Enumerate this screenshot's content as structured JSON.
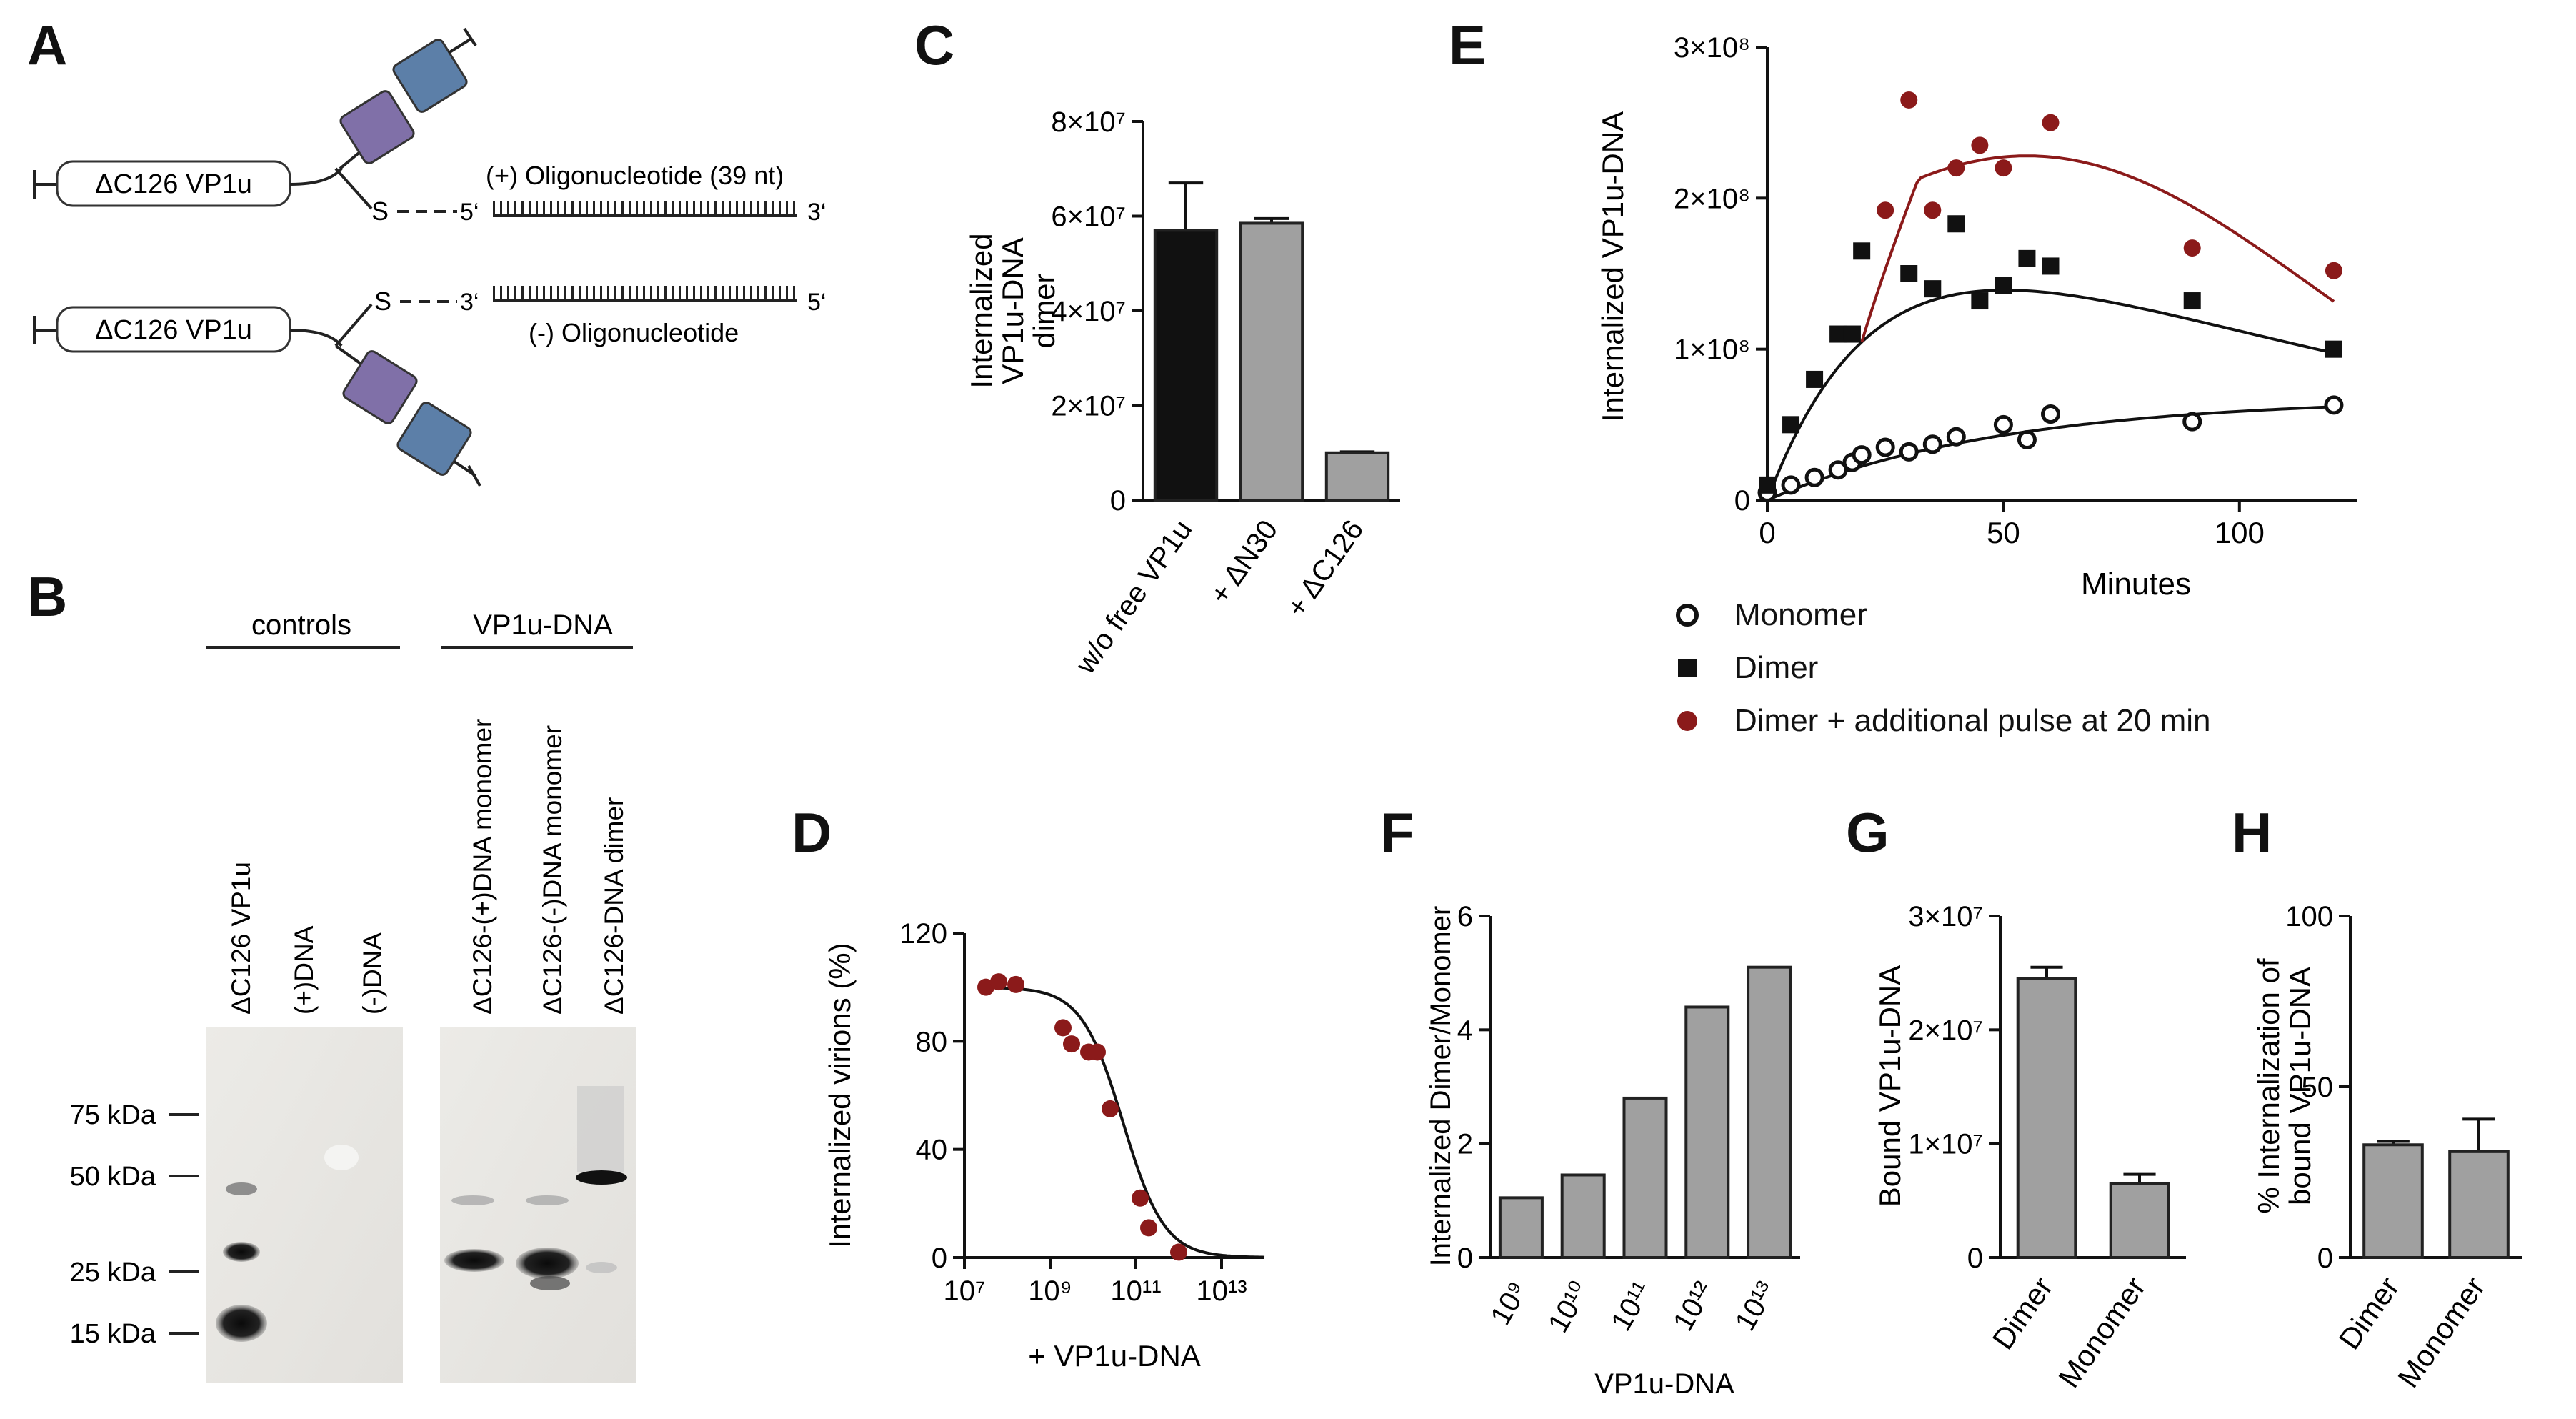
{
  "panels": {
    "A": "A",
    "B": "B",
    "C": "C",
    "D": "D",
    "E": "E",
    "F": "F",
    "G": "G",
    "H": "H"
  },
  "panel_a": {
    "construct_top": "ΔC126 VP1u",
    "construct_bottom": "ΔC126 VP1u",
    "oligo_plus": "(+) Oligonucleotide (39 nt)",
    "oligo_minus": "(-) Oligonucleotide",
    "s_label": "S",
    "five_prime": "5‘",
    "three_prime": "3‘"
  },
  "panel_b": {
    "group_controls": "controls",
    "group_vp1u_dna": "VP1u-DNA",
    "lanes": [
      "ΔC126 VP1u",
      "(+)DNA",
      "(-)DNA",
      "ΔC126-(+)DNA monomer",
      "ΔC126-(-)DNA monomer",
      "ΔC126-DNA dimer"
    ],
    "markers": [
      "75 kDa",
      "50 kDa",
      "25 kDa",
      "15 kDa"
    ]
  },
  "chart_data": [
    {
      "id": "C",
      "type": "bar",
      "ylabel": "Internalized VP1u-DNA dimer",
      "categories": [
        "w/o free VP1u",
        "+ ΔN30",
        "+ ΔC126"
      ],
      "values": [
        57000000.0,
        58500000.0,
        10000000.0
      ],
      "errors": [
        10000000.0,
        1000000.0,
        200000.0
      ],
      "colors": [
        "#111111",
        "#a0a0a0",
        "#a0a0a0"
      ],
      "ylim": [
        0,
        80000000.0
      ],
      "ytick_labels": [
        "0",
        "2×10⁷",
        "4×10⁷",
        "6×10⁷",
        "8×10⁷"
      ]
    },
    {
      "id": "D",
      "type": "scatter",
      "ylabel": "Internalized virions (%)",
      "xlabel": "+ VP1u-DNA",
      "x_log10": [
        7.5,
        7.8,
        8.2,
        9.3,
        9.5,
        9.9,
        10.1,
        10.4,
        11.1,
        11.3,
        12.0
      ],
      "y": [
        100,
        102,
        101,
        85,
        79,
        76,
        76,
        55,
        22,
        11,
        2
      ],
      "fit": "sigmoid",
      "fit_top": 100,
      "fit_ec50_log10": 10.7,
      "fit_hill": 0.9,
      "ylim": [
        0,
        120
      ],
      "xlim_log10": [
        7,
        14
      ],
      "ytick_labels": [
        "0",
        "40",
        "80",
        "120"
      ],
      "xtick_labels": [
        "10⁷",
        "10⁹",
        "10¹¹",
        "10¹³"
      ]
    },
    {
      "id": "E",
      "type": "scatter",
      "ylabel": "Internalized VP1u-DNA",
      "xlabel": "Minutes",
      "xlim": [
        0,
        125
      ],
      "ylim": [
        0,
        300000000.0
      ],
      "ytick_labels": [
        "0",
        "1×10⁸",
        "2×10⁸",
        "3×10⁸"
      ],
      "xtick_labels": [
        "0",
        "50",
        "100"
      ],
      "series": [
        {
          "name": "Monomer",
          "marker": "open-circle",
          "color": "#111111",
          "x": [
            0,
            5,
            10,
            15,
            18,
            20,
            25,
            30,
            35,
            40,
            50,
            55,
            60,
            90,
            120
          ],
          "y": [
            5000000.0,
            10000000.0,
            15000000.0,
            20000000.0,
            25000000.0,
            30000000.0,
            35000000.0,
            32000000.0,
            37000000.0,
            42000000.0,
            50000000.0,
            40000000.0,
            57000000.0,
            52000000.0,
            63000000.0
          ],
          "fit": {
            "type": "exp",
            "ymax": 68000000.0,
            "k": 0.02
          }
        },
        {
          "name": "Dimer",
          "marker": "square",
          "color": "#111111",
          "x": [
            0,
            5,
            10,
            15,
            18,
            20,
            30,
            35,
            40,
            45,
            50,
            55,
            60,
            90,
            120
          ],
          "y": [
            10000000.0,
            50000000.0,
            80000000.0,
            110000000.0,
            110000000.0,
            165000000.0,
            150000000.0,
            140000000.0,
            183000000.0,
            132000000.0,
            142000000.0,
            160000000.0,
            155000000.0,
            132000000.0,
            100000000.0
          ],
          "fit": {
            "type": "bateman",
            "a": 260000000.0,
            "k1": 0.04,
            "k2": 0.008
          }
        },
        {
          "name": "Dimer + additional pulse at 20 min",
          "marker": "circle",
          "color": "#8b1a1a",
          "x": [
            25,
            30,
            35,
            40,
            45,
            50,
            60,
            90,
            120
          ],
          "y": [
            192000000.0,
            265000000.0,
            192000000.0,
            220000000.0,
            235000000.0,
            220000000.0,
            250000000.0,
            167000000.0,
            152000000.0
          ],
          "fit": {
            "type": "gauss",
            "peak": 228000000.0,
            "mu": 55,
            "sigma": 62
          }
        }
      ]
    },
    {
      "id": "F",
      "type": "bar",
      "ylabel": "Internalized Dimer/Monomer",
      "xlabel": "VP1u-DNA",
      "categories": [
        "10⁹",
        "10¹⁰",
        "10¹¹",
        "10¹²",
        "10¹³"
      ],
      "values": [
        1.05,
        1.45,
        2.8,
        4.4,
        5.1
      ],
      "ylim": [
        0,
        6
      ],
      "ytick_labels": [
        "0",
        "2",
        "4",
        "6"
      ]
    },
    {
      "id": "G",
      "type": "bar",
      "ylabel": "Bound VP1u-DNA",
      "categories": [
        "Dimer",
        "Monomer"
      ],
      "values": [
        24500000.0,
        6500000.0
      ],
      "errors": [
        1000000.0,
        800000.0
      ],
      "ylim": [
        0,
        30000000.0
      ],
      "ytick_labels": [
        "0",
        "1×10⁷",
        "2×10⁷",
        "3×10⁷"
      ]
    },
    {
      "id": "H",
      "type": "bar",
      "ylabel": "% Internalization of bound VP1u-DNA",
      "categories": [
        "Dimer",
        "Monomer"
      ],
      "values": [
        33,
        31
      ],
      "errors": [
        1.0,
        9.5
      ],
      "ylim": [
        0,
        100
      ],
      "ytick_labels": [
        "0",
        "50",
        "100"
      ]
    }
  ],
  "colors": {
    "purple_domain": "#8070a8",
    "blue_domain": "#5c7fa8",
    "bar_gray": "#a0a0a0",
    "dark_red": "#8b1a1a"
  }
}
